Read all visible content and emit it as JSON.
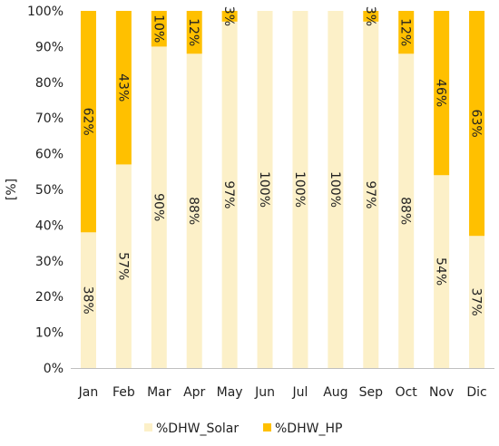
{
  "chart_data": {
    "type": "bar",
    "stacked": true,
    "categories": [
      "Jan",
      "Feb",
      "Mar",
      "Apr",
      "May",
      "Jun",
      "Jul",
      "Aug",
      "Sep",
      "Oct",
      "Nov",
      "Dic"
    ],
    "series": [
      {
        "name": "%DHW_Solar",
        "color": "#FCF0C8",
        "values": [
          38,
          57,
          90,
          88,
          97,
          100,
          100,
          100,
          97,
          88,
          54,
          37
        ],
        "labels": [
          "38%",
          "57%",
          "90%",
          "88%",
          "97%",
          "100%",
          "100%",
          "100%",
          "97%",
          "88%",
          "54%",
          "37%"
        ]
      },
      {
        "name": "%DHW_HP",
        "color": "#FFC000",
        "values": [
          62,
          43,
          10,
          12,
          3,
          0,
          0,
          0,
          3,
          12,
          46,
          63
        ],
        "labels": [
          "62%",
          "43%",
          "10%",
          "12%",
          "3%",
          "",
          "",
          "",
          "3%",
          "12%",
          "46%",
          "63%"
        ]
      }
    ],
    "title": "",
    "xlabel": "",
    "ylabel": "[%]",
    "ylim": [
      0,
      100
    ],
    "yticks": [
      "0%",
      "10%",
      "20%",
      "30%",
      "40%",
      "50%",
      "60%",
      "70%",
      "80%",
      "90%",
      "100%"
    ],
    "grid": false,
    "legend": "bottom"
  }
}
